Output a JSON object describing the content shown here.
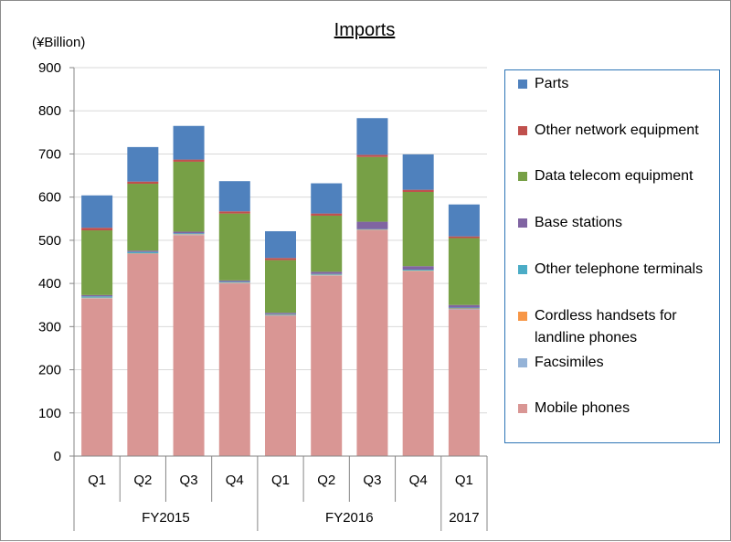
{
  "chart_data": {
    "type": "bar",
    "stacked": true,
    "title": "Imports",
    "ylabel": "(¥Billion)",
    "ylim": [
      0,
      900
    ],
    "yticks": [
      0,
      100,
      200,
      300,
      400,
      500,
      600,
      700,
      800,
      900
    ],
    "categories": [
      "Q1",
      "Q2",
      "Q3",
      "Q4",
      "Q1",
      "Q2",
      "Q3",
      "Q4",
      "Q1"
    ],
    "groups": [
      {
        "label": "FY2015",
        "size": 4
      },
      {
        "label": "FY2016",
        "size": 4
      },
      {
        "label": "2017",
        "size": 1
      }
    ],
    "legend_position": "right",
    "series": [
      {
        "name": "Mobile phones",
        "color": "#d99694",
        "values": [
          365,
          468,
          512,
          400,
          325,
          418,
          523,
          428,
          340
        ]
      },
      {
        "name": "Facsimiles",
        "color": "#95b3d7",
        "values": [
          1,
          1,
          1,
          1,
          1,
          1,
          1,
          1,
          1
        ]
      },
      {
        "name": "Cordless handsets for landline phones",
        "color": "#f79646",
        "values": [
          1,
          1,
          1,
          1,
          1,
          1,
          1,
          1,
          1
        ]
      },
      {
        "name": "Other telephone terminals",
        "color": "#4bacc6",
        "values": [
          3,
          3,
          2,
          2,
          2,
          2,
          1,
          2,
          2
        ]
      },
      {
        "name": "Base stations",
        "color": "#8064a2",
        "values": [
          3,
          3,
          4,
          3,
          3,
          5,
          17,
          8,
          6
        ]
      },
      {
        "name": "Data telecom equipment",
        "color": "#77a046",
        "values": [
          150,
          155,
          162,
          155,
          122,
          130,
          150,
          172,
          155
        ]
      },
      {
        "name": "Other network equipment",
        "color": "#c0504d",
        "values": [
          6,
          5,
          5,
          5,
          5,
          5,
          5,
          5,
          4
        ]
      },
      {
        "name": "Parts",
        "color": "#4f81bd",
        "values": [
          75,
          80,
          78,
          70,
          62,
          70,
          85,
          82,
          74
        ]
      }
    ]
  }
}
